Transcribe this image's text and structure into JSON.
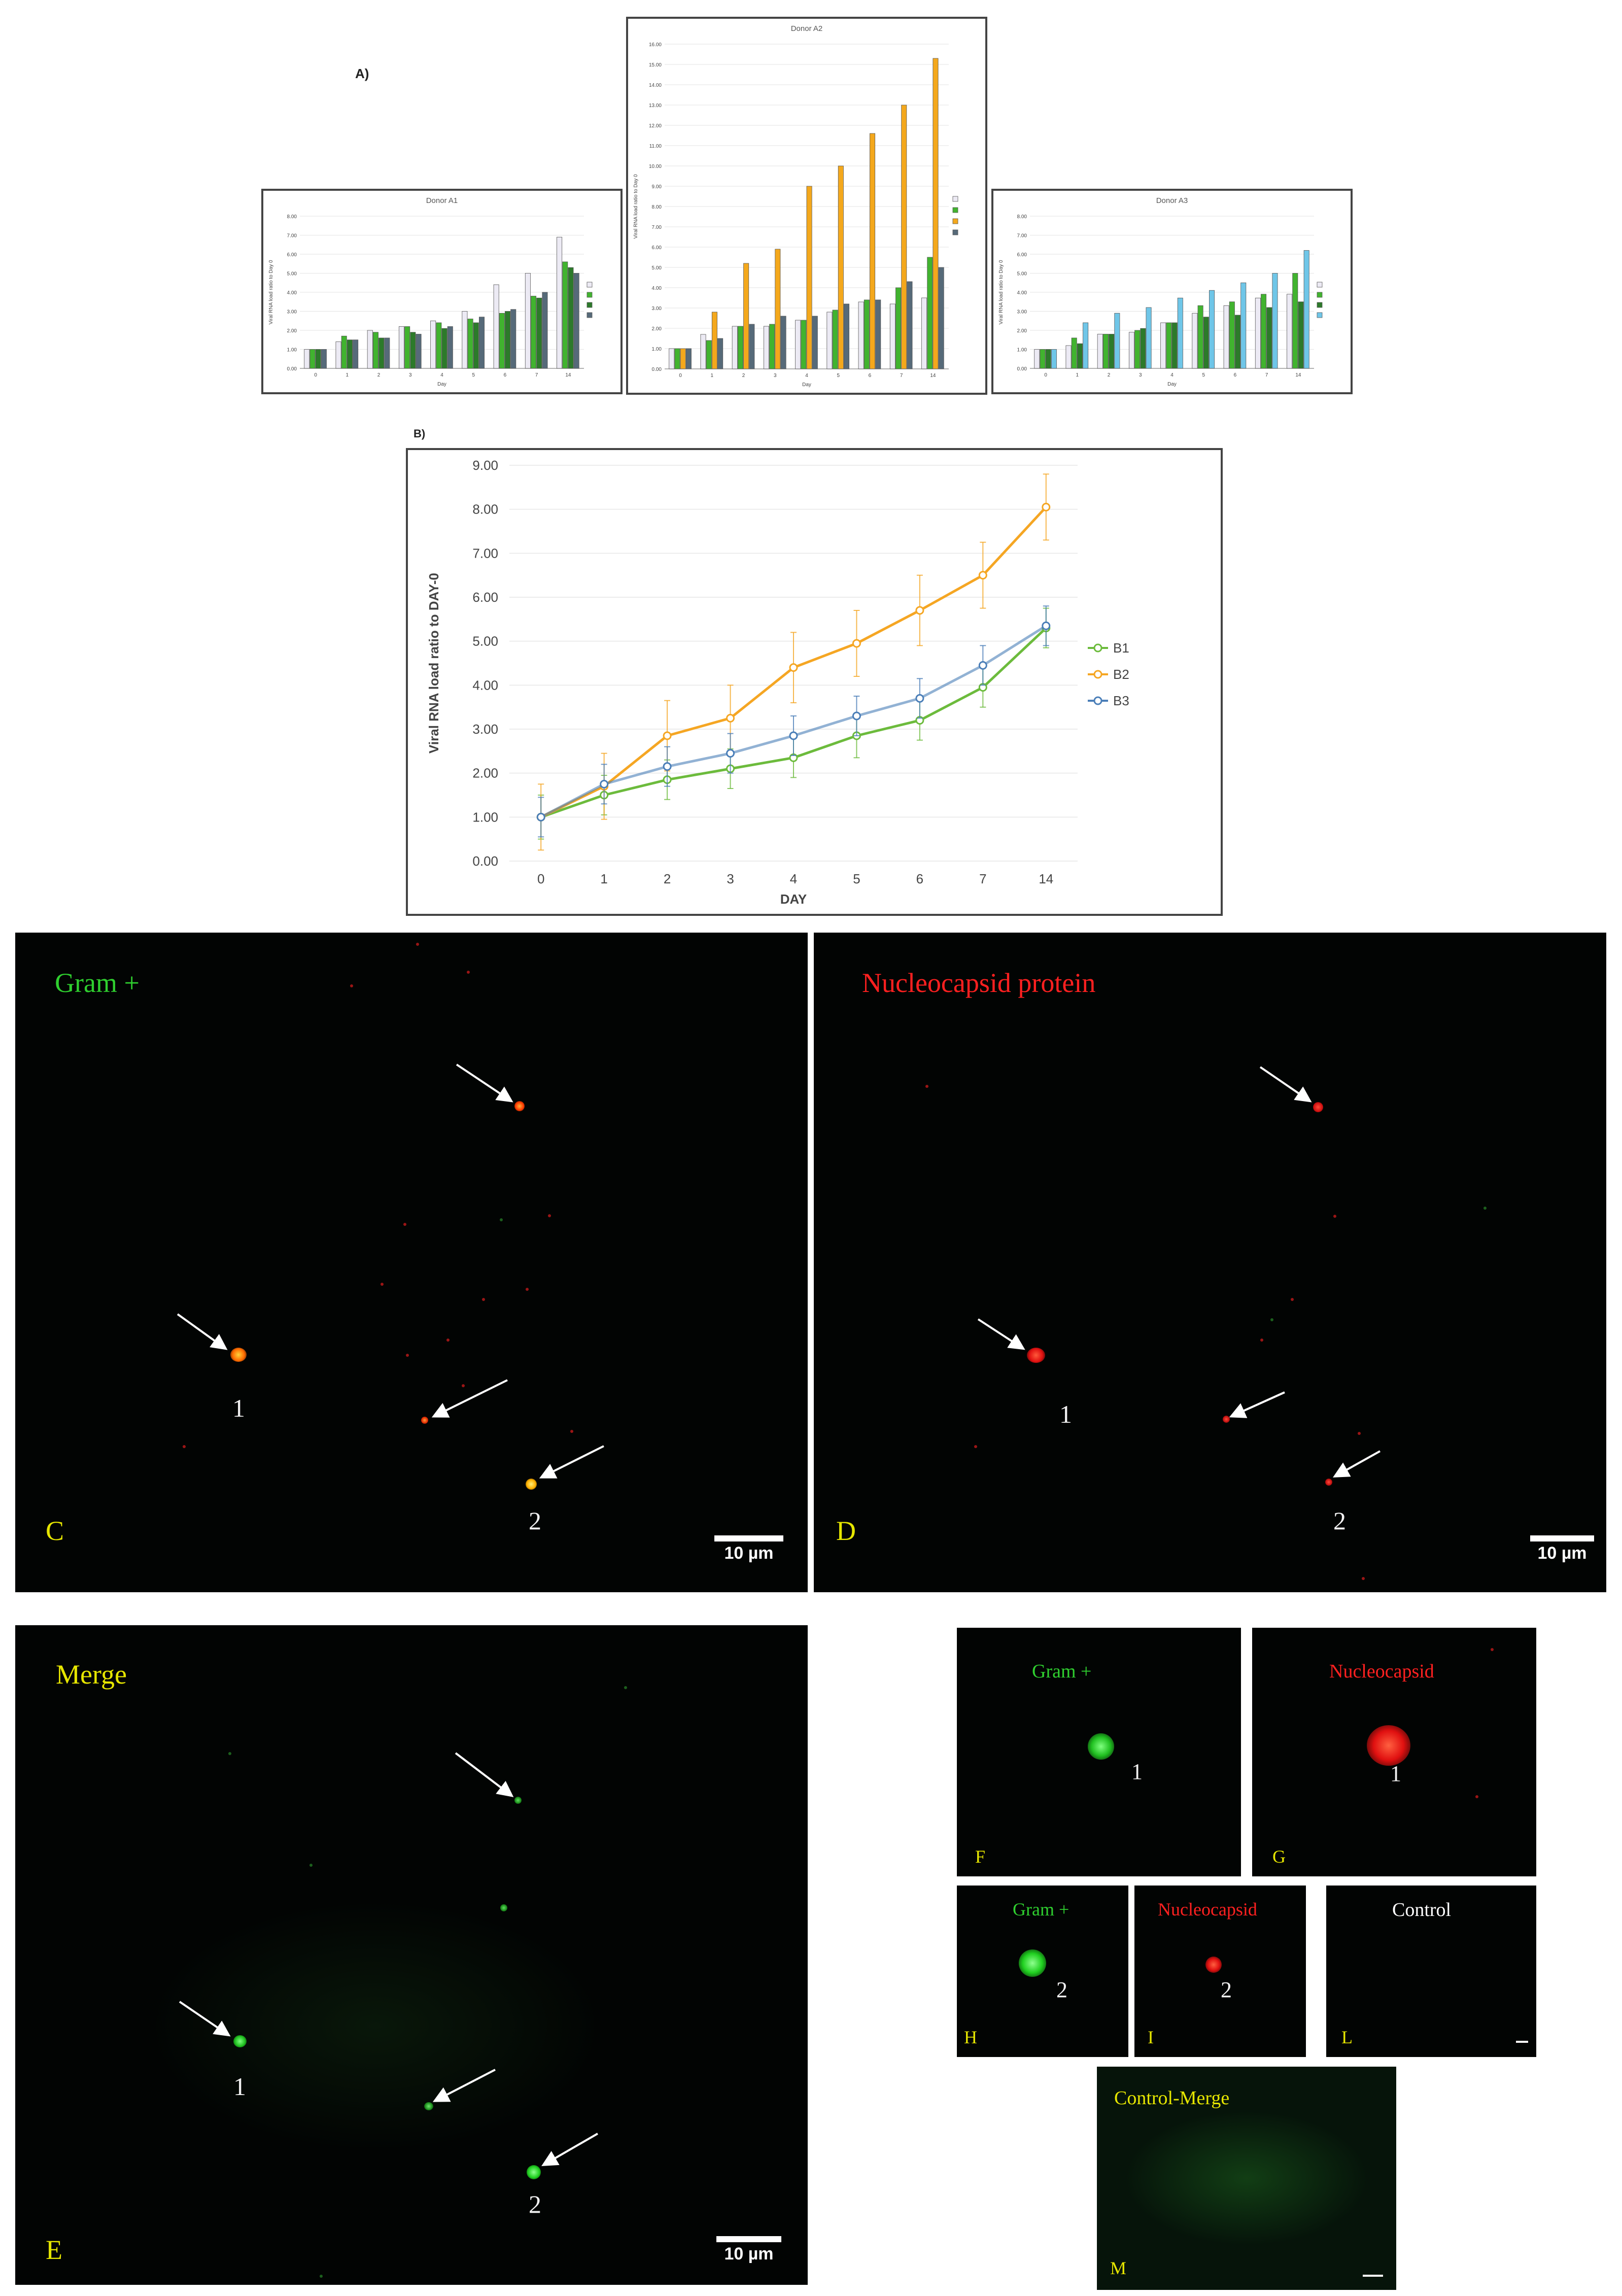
{
  "panel_a": {
    "label": "A)",
    "charts": [
      {
        "title": "Donor A1",
        "ylabel": "Viral RNA load ratio to Day 0",
        "xlabel": "Day"
      },
      {
        "title": "Donor A2",
        "ylabel": "Viral RNA load ratio to Day 0",
        "xlabel": "Day"
      },
      {
        "title": "Donor A3",
        "ylabel": "Viral RNA load ratio to Day 0",
        "xlabel": "Day"
      }
    ]
  },
  "panel_b": {
    "label": "B)"
  },
  "colors": {
    "white_bar": "#eceaf4",
    "green": "#41b32f",
    "dark_green": "#2c7a2a",
    "orange": "#f4a81c",
    "blue": "#6fc6e8",
    "slate": "#566a79",
    "line_green": "#6cbb3c",
    "line_orange": "#f5a623",
    "line_blue": "#4a7eb8"
  },
  "chart_data": [
    {
      "type": "bar",
      "title": "Donor A1",
      "categories": [
        "0",
        "1",
        "2",
        "3",
        "4",
        "5",
        "6",
        "7",
        "14"
      ],
      "xlabel": "Day",
      "ylabel": "Viral RNA load ratio to Day 0",
      "ylim": [
        0,
        8
      ],
      "yticks": [
        "0.00",
        "1.00",
        "2.00",
        "3.00",
        "4.00",
        "5.00",
        "6.00",
        "7.00",
        "8.00"
      ],
      "legend_position": "right",
      "series": [
        {
          "color": "#eceaf4",
          "values": [
            1.0,
            1.4,
            2.0,
            2.2,
            2.5,
            3.0,
            4.4,
            5.0,
            6.9
          ]
        },
        {
          "color": "#41b32f",
          "values": [
            1.0,
            1.7,
            1.9,
            2.2,
            2.4,
            2.6,
            2.9,
            3.8,
            5.6
          ]
        },
        {
          "color": "#2c7a2a",
          "values": [
            1.0,
            1.5,
            1.6,
            1.9,
            2.1,
            2.4,
            3.0,
            3.7,
            5.3
          ]
        },
        {
          "color": "#566a79",
          "values": [
            1.0,
            1.5,
            1.6,
            1.8,
            2.2,
            2.7,
            3.1,
            4.0,
            5.0
          ]
        }
      ]
    },
    {
      "type": "bar",
      "title": "Donor A2",
      "categories": [
        "0",
        "1",
        "2",
        "3",
        "4",
        "5",
        "6",
        "7",
        "14"
      ],
      "xlabel": "Day",
      "ylabel": "Viral RNA load ratio to Day 0",
      "ylim": [
        0,
        16
      ],
      "yticks": [
        "0.00",
        "1.00",
        "2.00",
        "3.00",
        "4.00",
        "5.00",
        "6.00",
        "7.00",
        "8.00",
        "9.00",
        "10.00",
        "11.00",
        "12.00",
        "13.00",
        "14.00",
        "15.00",
        "16.00"
      ],
      "legend_position": "right",
      "series": [
        {
          "color": "#eceaf4",
          "values": [
            1.0,
            1.7,
            2.1,
            2.1,
            2.4,
            2.8,
            3.3,
            3.2,
            3.5
          ]
        },
        {
          "color": "#41b32f",
          "values": [
            1.0,
            1.4,
            2.1,
            2.2,
            2.4,
            2.9,
            3.4,
            4.0,
            5.5
          ]
        },
        {
          "color": "#f4a81c",
          "values": [
            1.0,
            2.8,
            5.2,
            5.9,
            9.0,
            10.0,
            11.6,
            13.0,
            15.3
          ]
        },
        {
          "color": "#566a79",
          "values": [
            1.0,
            1.5,
            2.2,
            2.6,
            2.6,
            3.2,
            3.4,
            4.3,
            5.0
          ]
        }
      ]
    },
    {
      "type": "bar",
      "title": "Donor A3",
      "categories": [
        "0",
        "1",
        "2",
        "3",
        "4",
        "5",
        "6",
        "7",
        "14"
      ],
      "xlabel": "Day",
      "ylabel": "Viral RNA load ratio to Day 0",
      "ylim": [
        0,
        8
      ],
      "yticks": [
        "0.00",
        "1.00",
        "2.00",
        "3.00",
        "4.00",
        "5.00",
        "6.00",
        "7.00",
        "8.00"
      ],
      "legend_position": "right",
      "series": [
        {
          "color": "#eceaf4",
          "values": [
            1.0,
            1.2,
            1.8,
            1.9,
            2.4,
            2.9,
            3.3,
            3.7,
            3.9
          ]
        },
        {
          "color": "#41b32f",
          "values": [
            1.0,
            1.6,
            1.8,
            2.0,
            2.4,
            3.3,
            3.5,
            3.9,
            5.0
          ]
        },
        {
          "color": "#2c7a2a",
          "values": [
            1.0,
            1.3,
            1.8,
            2.1,
            2.4,
            2.7,
            2.8,
            3.2,
            3.5
          ]
        },
        {
          "color": "#6fc6e8",
          "values": [
            1.0,
            2.4,
            2.9,
            3.2,
            3.7,
            4.1,
            4.5,
            5.0,
            6.2
          ]
        }
      ]
    },
    {
      "type": "line",
      "categories": [
        "0",
        "1",
        "2",
        "3",
        "4",
        "5",
        "6",
        "7",
        "14"
      ],
      "xlabel": "DAY",
      "ylabel": "Viral RNA load ratio to DAY-0",
      "ylim": [
        0,
        9
      ],
      "yticks": [
        "0.00",
        "1.00",
        "2.00",
        "3.00",
        "4.00",
        "5.00",
        "6.00",
        "7.00",
        "8.00",
        "9.00"
      ],
      "legend_position": "right",
      "series": [
        {
          "name": "B1",
          "color": "#6cbb3c",
          "values": [
            1.0,
            1.5,
            1.85,
            2.1,
            2.35,
            2.85,
            3.2,
            3.95,
            5.3
          ],
          "error": [
            0.5,
            0.45,
            0.45,
            0.45,
            0.45,
            0.5,
            0.45,
            0.45,
            0.45
          ]
        },
        {
          "name": "B2",
          "color": "#f5a623",
          "values": [
            1.0,
            1.7,
            2.85,
            3.25,
            4.4,
            4.95,
            5.7,
            6.5,
            8.05
          ],
          "error": [
            0.75,
            0.75,
            0.8,
            0.75,
            0.8,
            0.75,
            0.8,
            0.75,
            0.75
          ]
        },
        {
          "name": "B3",
          "color": "#4a7eb8",
          "values": [
            1.0,
            1.75,
            2.15,
            2.45,
            2.85,
            3.3,
            3.7,
            4.45,
            5.35
          ],
          "error": [
            0.45,
            0.45,
            0.45,
            0.45,
            0.45,
            0.45,
            0.45,
            0.45,
            0.45
          ]
        }
      ]
    }
  ],
  "micrographs": {
    "C": {
      "letter": "C",
      "title": "Gram +",
      "n1": "1",
      "n2": "2",
      "scale": "10 µm"
    },
    "D": {
      "letter": "D",
      "title": "Nucleocapsid protein",
      "n1": "1",
      "n2": "2",
      "scale": "10 µm"
    },
    "E": {
      "letter": "E",
      "title": "Merge",
      "n1": "1",
      "n2": "2",
      "scale": "10 µm"
    },
    "F": {
      "letter": "F",
      "title": "Gram +",
      "n": "1"
    },
    "G": {
      "letter": "G",
      "title": "Nucleocapsid",
      "n": "1"
    },
    "H": {
      "letter": "H",
      "title": "Gram +",
      "n": "2"
    },
    "I": {
      "letter": "I",
      "title": "Nucleocapsid",
      "n": "2"
    },
    "L": {
      "letter": "L",
      "title": "Control"
    },
    "M": {
      "letter": "M",
      "title": "Control-Merge"
    }
  }
}
